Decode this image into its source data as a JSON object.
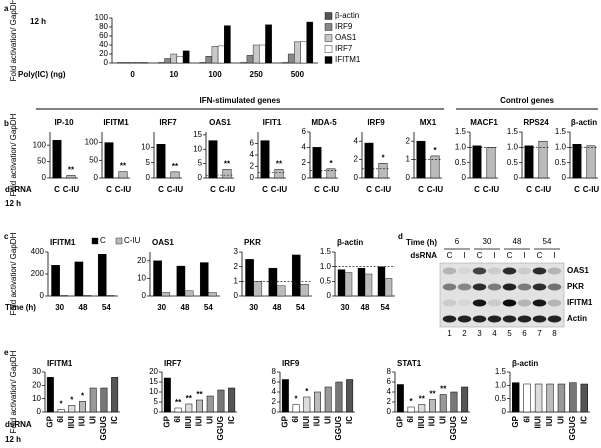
{
  "chart_data": [
    {
      "type": "grouped-bar",
      "panel": "a",
      "title": "12 h",
      "ylabel": "Fold activation/ GapDH",
      "xlabel": "Poly(IC) (ng)",
      "categories": [
        "0",
        "10",
        "100",
        "250",
        "500"
      ],
      "series": [
        {
          "name": "β-actin",
          "color": "#555555",
          "values": [
            1,
            1,
            1,
            1,
            1
          ]
        },
        {
          "name": "IRF9",
          "color": "#888888",
          "values": [
            1,
            10,
            15,
            17,
            20
          ]
        },
        {
          "name": "OAS1",
          "color": "#c8c8c8",
          "values": [
            1,
            20,
            37,
            40,
            47
          ]
        },
        {
          "name": "IRF7",
          "color": "#ffffff",
          "values": [
            1,
            15,
            38,
            40,
            48
          ]
        },
        {
          "name": "IFITM1",
          "color": "#000000",
          "values": [
            1,
            27,
            83,
            85,
            91
          ]
        }
      ],
      "ylim": [
        0,
        100
      ],
      "yticks": [
        0,
        20,
        40,
        60,
        80,
        100
      ]
    },
    {
      "type": "small-multiples",
      "panel": "b",
      "ylabel": "Fold activation/ GapDH",
      "row_labels": [
        "dsRNA",
        "12 h"
      ],
      "categories": [
        "C",
        "C-IU"
      ],
      "colors": [
        "#000000",
        "#bbbbbb"
      ],
      "groups": [
        {
          "title": "IFN-stimulated genes",
          "subplots": [
            {
              "title": "IP-10",
              "ylim": [
                0,
                140
              ],
              "yticks": [
                0,
                50,
                100
              ],
              "values": [
                115,
                8
              ],
              "annotations": [
                null,
                "**"
              ]
            },
            {
              "title": "IFITM1",
              "ylim": [
                0,
                130
              ],
              "yticks": [
                0,
                50,
                100
              ],
              "values": [
                100,
                18
              ],
              "annotations": [
                null,
                "**"
              ]
            },
            {
              "title": "IRF7",
              "ylim": [
                0,
                15
              ],
              "yticks": [
                0,
                5,
                10
              ],
              "values": [
                11,
                2
              ],
              "annotations": [
                null,
                "**"
              ]
            },
            {
              "title": "OAS1",
              "ylim": [
                0,
                16
              ],
              "yticks": [
                0,
                5,
                10,
                15
              ],
              "values": [
                13,
                3
              ],
              "annotations": [
                null,
                "**"
              ],
              "reference_line": 1
            },
            {
              "title": "IFIT1",
              "ylim": [
                0,
                8
              ],
              "yticks": [
                0,
                2,
                4,
                6
              ],
              "values": [
                6.5,
                1.5
              ],
              "annotations": [
                null,
                "**"
              ],
              "reference_line": 1
            },
            {
              "title": "MDA-5",
              "ylim": [
                0,
                6
              ],
              "yticks": [
                0,
                2,
                4,
                6
              ],
              "values": [
                4,
                1.2
              ],
              "annotations": [
                null,
                "*"
              ],
              "reference_line": 1
            },
            {
              "title": "IRF9",
              "ylim": [
                0,
                5
              ],
              "yticks": [
                0,
                2,
                4
              ],
              "values": [
                3.8,
                1.6
              ],
              "annotations": [
                null,
                "*"
              ],
              "reference_line": 1
            },
            {
              "title": "MX1",
              "ylim": [
                0,
                2.5
              ],
              "yticks": [
                0,
                1,
                2
              ],
              "values": [
                2,
                1.2
              ],
              "annotations": [
                null,
                "*"
              ],
              "reference_line": 1
            }
          ]
        },
        {
          "title": "Control genes",
          "subplots": [
            {
              "title": "MACF1",
              "ylim": [
                0,
                1.5
              ],
              "yticks": [
                0,
                0.5,
                {
                  "value": 1,
                  "label": "1.0"
                },
                1.5
              ],
              "values": [
                1.05,
                1.0
              ],
              "reference_line": 1
            },
            {
              "title": "RPS24",
              "ylim": [
                0,
                1.5
              ],
              "yticks": [
                0,
                0.5,
                {
                  "value": 1,
                  "label": "1.0"
                },
                1.5
              ],
              "values": [
                1.05,
                1.2
              ],
              "reference_line": 1
            },
            {
              "title": "β-actin",
              "ylim": [
                0,
                1.5
              ],
              "yticks": [
                0,
                0.5,
                {
                  "value": 1,
                  "label": "1.0"
                },
                1.5
              ],
              "values": [
                1.1,
                1.05
              ],
              "reference_line": 1
            }
          ]
        }
      ]
    },
    {
      "type": "small-multiples",
      "panel": "c",
      "ylabel": "Fold activation/ GapDH",
      "row_labels": [
        "Time (h)"
      ],
      "categories": [
        "30",
        "48",
        "54"
      ],
      "legend": [
        {
          "name": "C",
          "color": "#000000"
        },
        {
          "name": "C-IU",
          "color": "#bbbbbb"
        }
      ],
      "groups": [
        {
          "subplots": [
            {
              "title": "IFITM1",
              "ylim": [
                0,
                400
              ],
              "yticks": [
                0,
                200,
                400
              ],
              "series": [
                {
                  "values": [
                    280,
                    310,
                    380
                  ]
                },
                {
                  "values": [
                    5,
                    5,
                    5
                  ]
                }
              ]
            },
            {
              "title": "OAS1",
              "ylim": [
                0,
                25
              ],
              "yticks": [
                0,
                10,
                20
              ],
              "series": [
                {
                  "values": [
                    20,
                    17,
                    19
                  ]
                },
                {
                  "values": [
                    2,
                    3,
                    2
                  ]
                }
              ]
            },
            {
              "title": "PKR",
              "ylim": [
                0,
                3
              ],
              "yticks": [
                0,
                1,
                2,
                3
              ],
              "series": [
                {
                  "values": [
                    2.5,
                    1.9,
                    2.8
                  ]
                },
                {
                  "values": [
                    1.0,
                    0.7,
                    0.8
                  ]
                }
              ],
              "reference_line": 1
            },
            {
              "title": "β-actin",
              "ylim": [
                0,
                1.5
              ],
              "yticks": [
                0,
                0.5,
                {
                  "value": 1,
                  "label": "1.0"
                },
                1.5
              ],
              "series": [
                {
                  "values": [
                    0.9,
                    0.95,
                    1.0
                  ]
                },
                {
                  "values": [
                    0.8,
                    0.75,
                    0.6
                  ]
                }
              ],
              "reference_line": 1
            }
          ]
        }
      ]
    },
    {
      "type": "small-multiples",
      "panel": "e",
      "ylabel": "Fold activation/ GapDH",
      "row_labels": [
        "dsRNA",
        "12 h"
      ],
      "categories": [
        "GP",
        "6I",
        "IIUI",
        "IUI",
        "UI",
        "GGUG",
        "IC"
      ],
      "colors": [
        "#000000",
        "#ffffff",
        "#dddddd",
        "#bbbbbb",
        "#999999",
        "#777777",
        "#555555"
      ],
      "groups": [
        {
          "subplots": [
            {
              "title": "IFITM1",
              "ylim": [
                0,
                30
              ],
              "yticks": [
                0,
                10,
                20,
                30
              ],
              "values": [
                26,
                2,
                5,
                8,
                18,
                18,
                26
              ],
              "annotations": [
                null,
                "*",
                "*",
                "*",
                null,
                null,
                null
              ]
            },
            {
              "title": "IRF7",
              "ylim": [
                0,
                20
              ],
              "yticks": [
                0,
                5,
                10,
                15,
                20
              ],
              "values": [
                17,
                2,
                4,
                6,
                8,
                11,
                12
              ],
              "annotations": [
                null,
                "**",
                "**",
                "**",
                null,
                null,
                null
              ]
            },
            {
              "title": "IRF9",
              "ylim": [
                0,
                8
              ],
              "yticks": [
                0,
                2,
                4,
                6,
                8
              ],
              "values": [
                6.5,
                1.5,
                3,
                4,
                5,
                6,
                6.5
              ],
              "annotations": [
                null,
                "*",
                "*",
                null,
                null,
                null,
                null
              ]
            },
            {
              "title": "STAT1",
              "ylim": [
                0,
                8
              ],
              "yticks": [
                0,
                2,
                4,
                6,
                8
              ],
              "values": [
                5.5,
                1,
                1.5,
                2.5,
                3.5,
                4,
                5
              ],
              "annotations": [
                null,
                "*",
                "**",
                "**",
                "**",
                null,
                null
              ]
            },
            {
              "title": "β-actin",
              "ylim": [
                0,
                1.5
              ],
              "yticks": [
                0,
                0.5,
                {
                  "value": 1,
                  "label": "1.0"
                },
                1.5
              ],
              "values": [
                1.1,
                1.05,
                1.05,
                1.05,
                1.05,
                1.1,
                1.05
              ]
            }
          ]
        }
      ]
    }
  ],
  "blot": {
    "panel": "d",
    "time_label": "Time (h)",
    "times": [
      "6",
      "30",
      "48",
      "54"
    ],
    "treatment_label": "dsRNA",
    "lanes": [
      "C",
      "I",
      "C",
      "I",
      "C",
      "I",
      "C",
      "I"
    ],
    "rows": [
      "OAS1",
      "PKR",
      "IFITM1",
      "Actin"
    ],
    "lane_numbers": [
      "1",
      "2",
      "3",
      "4",
      "5",
      "6",
      "7",
      "8"
    ]
  }
}
